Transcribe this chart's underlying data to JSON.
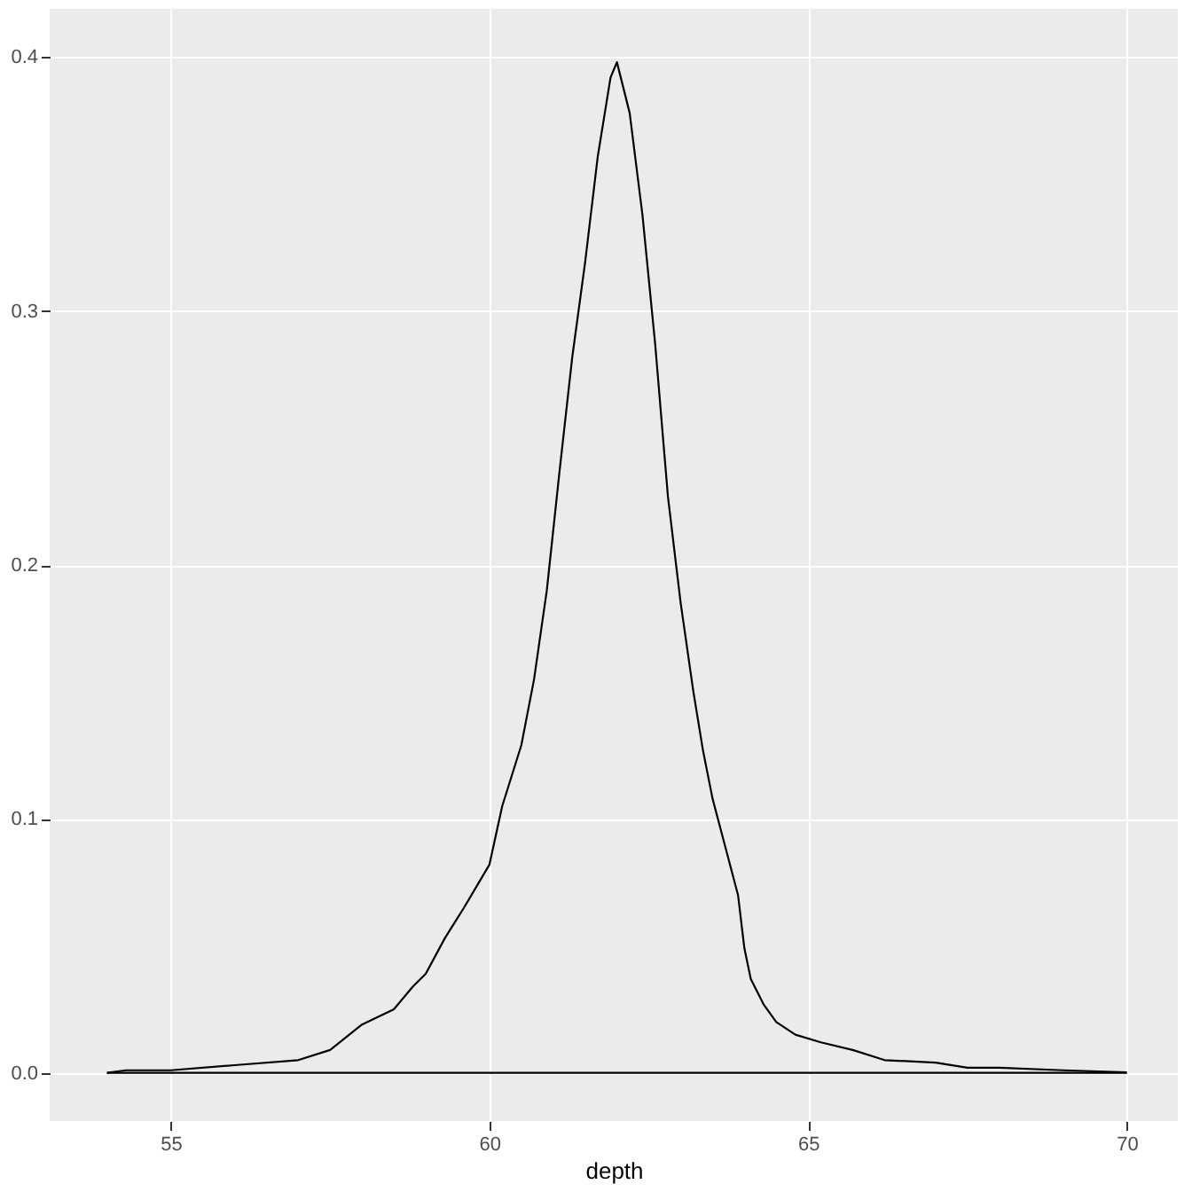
{
  "chart_data": {
    "type": "line",
    "xlabel": "depth",
    "x": [
      54.0,
      54.3,
      55,
      56,
      57,
      57.5,
      58,
      58.5,
      58.8,
      59,
      59.3,
      59.6,
      60,
      60.2,
      60.5,
      60.7,
      60.9,
      61.1,
      61.3,
      61.5,
      61.7,
      61.9,
      62.0,
      62.2,
      62.4,
      62.6,
      62.8,
      63.0,
      63.2,
      63.35,
      63.5,
      63.7,
      63.9,
      64.0,
      64.1,
      64.3,
      64.5,
      64.8,
      65.2,
      65.7,
      66.2,
      67,
      67.5,
      68,
      69,
      70
    ],
    "series": [
      {
        "color": "#000000",
        "values": [
          0,
          0.001,
          0.001,
          0.003,
          0.005,
          0.009,
          0.019,
          0.025,
          0.034,
          0.039,
          0.053,
          0.065,
          0.082,
          0.105,
          0.129,
          0.155,
          0.19,
          0.237,
          0.282,
          0.319,
          0.361,
          0.392,
          0.398,
          0.378,
          0.338,
          0.287,
          0.227,
          0.185,
          0.15,
          0.127,
          0.108,
          0.089,
          0.07,
          0.049,
          0.037,
          0.027,
          0.02,
          0.015,
          0.012,
          0.009,
          0.005,
          0.004,
          0.002,
          0.002,
          0.001,
          0.0002
        ]
      },
      {
        "color": "#000000",
        "x": [
          54.0,
          70
        ],
        "values": [
          0,
          0
        ]
      }
    ],
    "xlim": [
      53.1,
      70.8
    ],
    "xticks": [
      55,
      60,
      65,
      70
    ],
    "ylim": [
      -0.019,
      0.419
    ],
    "yticks": [
      {
        "value": 0,
        "label": "0.0"
      },
      0.1,
      0.2,
      0.3,
      0.4
    ],
    "grid": true
  }
}
